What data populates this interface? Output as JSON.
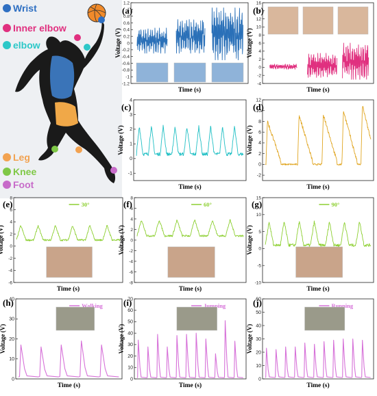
{
  "illustration": {
    "legend": [
      {
        "label": "Wrist",
        "color": "#2e6fc2"
      },
      {
        "label": "Inner elbow",
        "color": "#e0307f"
      },
      {
        "label": "elbow",
        "color": "#2cc8c8"
      },
      {
        "label": "Leg",
        "color": "#f2a250"
      },
      {
        "label": "Knee",
        "color": "#7fc846"
      },
      {
        "label": "Foot",
        "color": "#c76bc9"
      }
    ]
  },
  "chart_data": [
    {
      "id": "a",
      "type": "line",
      "panel_label": "(a)",
      "xlabel": "Time (s)",
      "ylabel": "Voltage (V)",
      "ylim": [
        -1.2,
        1.2
      ],
      "yticks": [
        -1.2,
        -1.0,
        -0.8,
        -0.6,
        -0.4,
        -0.2,
        0.0,
        0.2,
        0.4,
        0.6,
        0.8,
        1.0,
        1.2
      ],
      "color": "#2a70b8",
      "bursts": [
        {
          "t0": 0.03,
          "t1": 0.3,
          "min": -0.3,
          "max": 0.45
        },
        {
          "t0": 0.38,
          "t1": 0.64,
          "min": -0.3,
          "max": 0.7
        },
        {
          "t0": 0.7,
          "t1": 0.98,
          "min": -0.5,
          "max": 1.05
        }
      ]
    },
    {
      "id": "b",
      "type": "line",
      "panel_label": "(b)",
      "xlabel": "Time (s)",
      "ylabel": "Voltage (V)",
      "ylim": [
        -4,
        16
      ],
      "yticks": [
        -4,
        -2,
        0,
        2,
        4,
        6,
        8,
        10,
        12,
        14,
        16
      ],
      "color": "#e0307f",
      "bursts": [
        {
          "t0": 0.04,
          "t1": 0.3,
          "min": -0.5,
          "max": 0.8
        },
        {
          "t0": 0.4,
          "t1": 0.68,
          "min": -2.5,
          "max": 3.5
        },
        {
          "t0": 0.73,
          "t1": 0.98,
          "min": -3.0,
          "max": 6.0
        }
      ]
    },
    {
      "id": "c",
      "type": "line",
      "panel_label": "(c)",
      "xlabel": "Time (s)",
      "ylabel": "Voltage (V)",
      "ylim": [
        -1.5,
        4
      ],
      "yticks": [
        -1,
        0,
        1,
        2,
        3,
        4
      ],
      "color": "#1fbfc4",
      "periods": 9,
      "base": 0.3,
      "peak": 2.2
    },
    {
      "id": "d",
      "type": "line",
      "panel_label": "(d)",
      "xlabel": "Time (s)",
      "ylabel": "Voltage (V)",
      "ylim": [
        -3,
        12
      ],
      "yticks": [
        -2,
        0,
        2,
        4,
        6,
        8,
        10,
        12
      ],
      "color": "#e0a520",
      "peaks": [
        {
          "t": 0.02,
          "v": 8.0
        },
        {
          "t": 0.32,
          "v": 9.2
        },
        {
          "t": 0.55,
          "v": 9.3
        },
        {
          "t": 0.74,
          "v": 10.0
        },
        {
          "t": 0.92,
          "v": 11.0
        }
      ],
      "base": -1.0
    },
    {
      "id": "e",
      "type": "line",
      "panel_label": "(e)",
      "xlabel": "Time (s)",
      "ylabel": "Voltage (V)",
      "ylim": [
        -6,
        8
      ],
      "yticks": [
        -6,
        -4,
        -2,
        0,
        2,
        4,
        6,
        8
      ],
      "color": "#8ccf30",
      "legend": "30°",
      "periods": 6,
      "base": 1.0,
      "peak": 3.4
    },
    {
      "id": "f",
      "type": "line",
      "panel_label": "(f)",
      "xlabel": "Time (s)",
      "ylabel": "Voltage (V)",
      "ylim": [
        -8,
        8
      ],
      "yticks": [
        -8,
        -6,
        -4,
        -2,
        0,
        2,
        4,
        6,
        8
      ],
      "color": "#8ccf30",
      "legend": "60°",
      "periods": 6,
      "base": 0.8,
      "peak": 3.8
    },
    {
      "id": "g",
      "type": "line",
      "panel_label": "(g)",
      "xlabel": "Time (s)",
      "ylabel": "Voltage (V)",
      "ylim": [
        -10,
        15
      ],
      "yticks": [
        -10,
        -5,
        0,
        5,
        10,
        15
      ],
      "color": "#8ccf30",
      "legend": "90°",
      "periods": 7,
      "base": 1.0,
      "peak": 8.0
    },
    {
      "id": "h",
      "type": "line",
      "panel_label": "(h)",
      "xlabel": "Time (s)",
      "ylabel": "Voltage (V)",
      "ylim": [
        0,
        40
      ],
      "yticks": [
        0,
        10,
        20,
        30,
        40
      ],
      "color": "#d670d8",
      "legend": "Walking",
      "spikes": [
        17,
        16,
        17,
        19,
        17
      ]
    },
    {
      "id": "i",
      "type": "line",
      "panel_label": "(i)",
      "xlabel": "Time (s)",
      "ylabel": "Voltage (V)",
      "ylim": [
        0,
        70
      ],
      "yticks": [
        0,
        10,
        20,
        30,
        40,
        50,
        60,
        70
      ],
      "color": "#d670d8",
      "legend": "Jumping",
      "spikes": [
        34,
        28,
        39,
        28,
        38,
        39,
        40,
        35,
        22,
        51,
        33
      ]
    },
    {
      "id": "j",
      "type": "line",
      "panel_label": "(j)",
      "xlabel": "Time (s)",
      "ylabel": "Voltage (V)",
      "ylim": [
        0,
        60
      ],
      "yticks": [
        0,
        10,
        20,
        30,
        40,
        50,
        60
      ],
      "color": "#d670d8",
      "legend": "Running",
      "spikes": [
        23,
        22,
        24,
        24,
        27,
        26,
        28,
        29,
        30,
        30,
        29
      ]
    }
  ]
}
